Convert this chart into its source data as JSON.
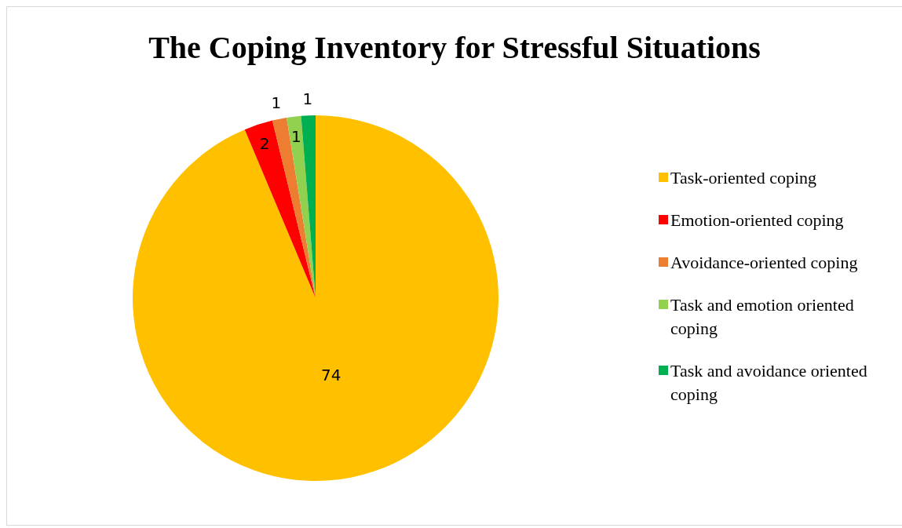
{
  "chart_data": {
    "type": "pie",
    "title": "The Coping Inventory for Stressful Situations",
    "categories": [
      "Task-oriented coping",
      "Emotion-oriented coping",
      "Avoidance-oriented coping",
      "Task and emotion oriented coping",
      "Task and avoidance oriented coping"
    ],
    "values": [
      74,
      2,
      1,
      1,
      1
    ],
    "colors": [
      "#ffc000",
      "#ff0000",
      "#ed7d31",
      "#92d050",
      "#00b050"
    ],
    "data_labels": true,
    "legend": "right"
  }
}
